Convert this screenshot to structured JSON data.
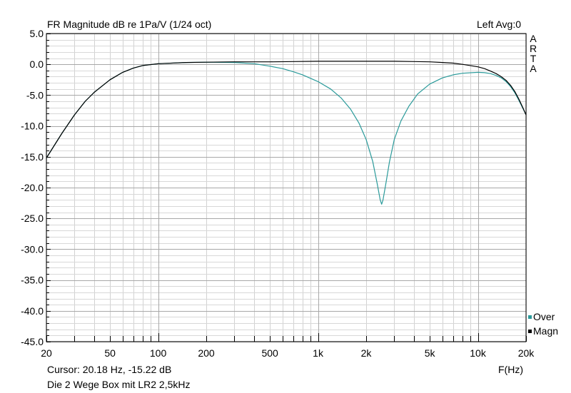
{
  "header": {
    "title": "FR Magnitude dB re 1Pa/V (1/24 oct)",
    "right": "Left  Avg:0",
    "brand": [
      "A",
      "R",
      "T",
      "A"
    ]
  },
  "footer": {
    "cursor": "Cursor: 20.18 Hz, -15.22 dB",
    "note": "Die 2 Wege Box mit LR2 2,5kHz"
  },
  "chart_data": {
    "type": "line",
    "title": "FR Magnitude dB re 1Pa/V (1/24 oct)",
    "xlabel": "F(Hz)",
    "ylabel": "",
    "x_scale": "log",
    "xlim": [
      20,
      20000
    ],
    "ylim": [
      -45,
      5
    ],
    "grid": true,
    "legend_position": "bottom-right",
    "x_ticks": [
      {
        "v": 20,
        "label": "20"
      },
      {
        "v": 50,
        "label": "50"
      },
      {
        "v": 100,
        "label": "100"
      },
      {
        "v": 200,
        "label": "200"
      },
      {
        "v": 500,
        "label": "500"
      },
      {
        "v": 1000,
        "label": "1k"
      },
      {
        "v": 2000,
        "label": "2k"
      },
      {
        "v": 5000,
        "label": "5k"
      },
      {
        "v": 10000,
        "label": "10k"
      },
      {
        "v": 20000,
        "label": "20k"
      }
    ],
    "y_ticks": [
      {
        "v": 5,
        "label": "5.0"
      },
      {
        "v": 0,
        "label": "0.0"
      },
      {
        "v": -5,
        "label": "-5.0"
      },
      {
        "v": -10,
        "label": "-10.0"
      },
      {
        "v": -15,
        "label": "-15.0"
      },
      {
        "v": -20,
        "label": "-20.0"
      },
      {
        "v": -25,
        "label": "-25.0"
      },
      {
        "v": -30,
        "label": "-30.0"
      },
      {
        "v": -35,
        "label": "-35.0"
      },
      {
        "v": -40,
        "label": "-40.0"
      },
      {
        "v": -45,
        "label": "-45.0"
      }
    ],
    "series": [
      {
        "name": "Over",
        "color": "#2a9a9a",
        "points": [
          [
            20,
            -15.2
          ],
          [
            25,
            -11.2
          ],
          [
            30,
            -8.2
          ],
          [
            35,
            -6.0
          ],
          [
            40,
            -4.5
          ],
          [
            50,
            -2.5
          ],
          [
            60,
            -1.3
          ],
          [
            70,
            -0.6
          ],
          [
            80,
            -0.2
          ],
          [
            100,
            0.1
          ],
          [
            150,
            0.3
          ],
          [
            200,
            0.35
          ],
          [
            300,
            0.3
          ],
          [
            400,
            0.1
          ],
          [
            500,
            -0.3
          ],
          [
            600,
            -0.7
          ],
          [
            700,
            -1.2
          ],
          [
            800,
            -1.7
          ],
          [
            1000,
            -2.8
          ],
          [
            1200,
            -4.0
          ],
          [
            1400,
            -5.5
          ],
          [
            1600,
            -7.3
          ],
          [
            1800,
            -9.5
          ],
          [
            2000,
            -12.2
          ],
          [
            2200,
            -15.8
          ],
          [
            2350,
            -19.5
          ],
          [
            2450,
            -22.0
          ],
          [
            2500,
            -22.7
          ],
          [
            2550,
            -22.0
          ],
          [
            2650,
            -19.5
          ],
          [
            2800,
            -15.8
          ],
          [
            3000,
            -12.2
          ],
          [
            3300,
            -9.2
          ],
          [
            3700,
            -6.8
          ],
          [
            4200,
            -4.8
          ],
          [
            5000,
            -3.2
          ],
          [
            6000,
            -2.2
          ],
          [
            7000,
            -1.7
          ],
          [
            8000,
            -1.45
          ],
          [
            10000,
            -1.3
          ],
          [
            11000,
            -1.35
          ],
          [
            12000,
            -1.5
          ],
          [
            13000,
            -1.8
          ],
          [
            14000,
            -2.2
          ],
          [
            15000,
            -2.8
          ],
          [
            16000,
            -3.6
          ],
          [
            17000,
            -4.6
          ],
          [
            18000,
            -5.8
          ],
          [
            19000,
            -7.0
          ],
          [
            20000,
            -8.2
          ]
        ]
      },
      {
        "name": "Magn",
        "color": "#000000",
        "points": [
          [
            20,
            -15.2
          ],
          [
            25,
            -11.2
          ],
          [
            30,
            -8.2
          ],
          [
            35,
            -6.0
          ],
          [
            40,
            -4.5
          ],
          [
            50,
            -2.5
          ],
          [
            60,
            -1.3
          ],
          [
            70,
            -0.6
          ],
          [
            80,
            -0.2
          ],
          [
            100,
            0.1
          ],
          [
            150,
            0.3
          ],
          [
            200,
            0.35
          ],
          [
            300,
            0.4
          ],
          [
            500,
            0.4
          ],
          [
            700,
            0.45
          ],
          [
            1000,
            0.5
          ],
          [
            1500,
            0.5
          ],
          [
            2000,
            0.5
          ],
          [
            3000,
            0.5
          ],
          [
            4000,
            0.45
          ],
          [
            5000,
            0.4
          ],
          [
            6000,
            0.3
          ],
          [
            7000,
            0.2
          ],
          [
            8000,
            0.0
          ],
          [
            10000,
            -0.4
          ],
          [
            11000,
            -0.7
          ],
          [
            12000,
            -1.1
          ],
          [
            13000,
            -1.5
          ],
          [
            14000,
            -2.0
          ],
          [
            15000,
            -2.6
          ],
          [
            16000,
            -3.4
          ],
          [
            17000,
            -4.4
          ],
          [
            18000,
            -5.6
          ],
          [
            19000,
            -6.9
          ],
          [
            20000,
            -8.2
          ]
        ]
      }
    ]
  }
}
